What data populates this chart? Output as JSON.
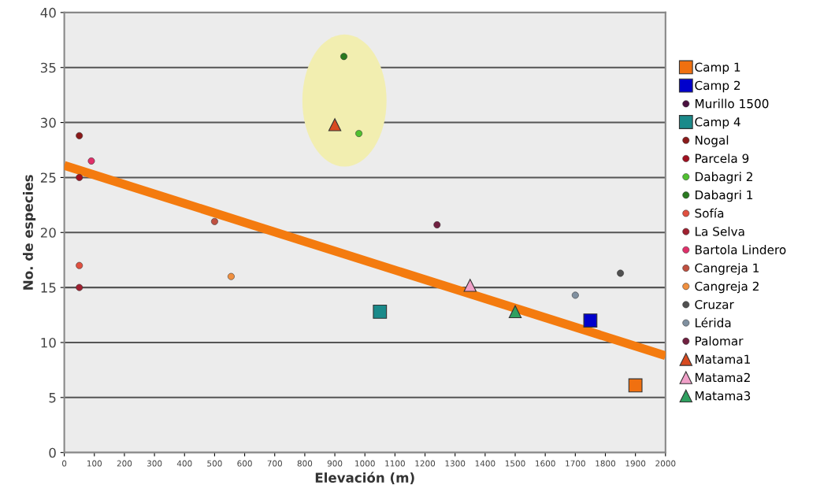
{
  "chart_data": {
    "type": "scatter",
    "xlabel": "Elevación (m)",
    "ylabel": "No. de especies",
    "xlim": [
      0,
      2000
    ],
    "xticks": [
      0,
      100,
      200,
      300,
      400,
      500,
      600,
      700,
      800,
      900,
      1000,
      1100,
      1200,
      1300,
      1400,
      1500,
      1600,
      1700,
      1800,
      1900,
      2000
    ],
    "ylim": [
      0,
      40
    ],
    "yticks": [
      0,
      5,
      10,
      15,
      20,
      25,
      30,
      35,
      40
    ],
    "grid": "y",
    "legend": "right",
    "series": [
      {
        "name": "Camp 1",
        "color": "#f07010",
        "marker": "square",
        "x": [
          1900
        ],
        "values": [
          6.1
        ]
      },
      {
        "name": "Camp 2",
        "color": "#0000cc",
        "marker": "square",
        "x": [
          1750
        ],
        "values": [
          12
        ]
      },
      {
        "name": "Murillo 1500",
        "color": "#4a1040",
        "marker": "circle"
      },
      {
        "name": "Camp 4",
        "color": "#1a8a8a",
        "marker": "square",
        "x": [
          1050
        ],
        "values": [
          12.8
        ]
      },
      {
        "name": "Nogal",
        "color": "#8b1a1a",
        "marker": "circle",
        "x": [
          50
        ],
        "values": [
          28.8
        ]
      },
      {
        "name": "Parcela 9",
        "color": "#a01020",
        "marker": "circle",
        "x": [
          50
        ],
        "values": [
          25
        ]
      },
      {
        "name": "Dabagri 2",
        "color": "#50c030",
        "marker": "circle",
        "x": [
          980
        ],
        "values": [
          29
        ]
      },
      {
        "name": "Dabagri 1",
        "color": "#2a7a20",
        "marker": "circle",
        "x": [
          930
        ],
        "values": [
          36
        ]
      },
      {
        "name": "Sofía",
        "color": "#e05040",
        "marker": "circle",
        "x": [
          50
        ],
        "values": [
          17
        ]
      },
      {
        "name": "La Selva",
        "color": "#a02030",
        "marker": "circle",
        "x": [
          50
        ],
        "values": [
          15
        ]
      },
      {
        "name": "Bartola Lindero",
        "color": "#e0306a",
        "marker": "circle",
        "x": [
          90
        ],
        "values": [
          26.5
        ]
      },
      {
        "name": "Cangreja 1",
        "color": "#c05040",
        "marker": "circle",
        "x": [
          500
        ],
        "values": [
          21
        ]
      },
      {
        "name": "Cangreja 2",
        "color": "#f09040",
        "marker": "circle",
        "x": [
          555
        ],
        "values": [
          16
        ]
      },
      {
        "name": "Cruzar",
        "color": "#505050",
        "marker": "circle",
        "x": [
          1850
        ],
        "values": [
          16.3
        ]
      },
      {
        "name": "Lérida",
        "color": "#8090a0",
        "marker": "circle",
        "x": [
          1700
        ],
        "values": [
          14.3
        ]
      },
      {
        "name": "Palomar",
        "color": "#702040",
        "marker": "circle",
        "x": [
          1240
        ],
        "values": [
          20.7
        ]
      },
      {
        "name": "Matama1",
        "color": "#d84a20",
        "marker": "triangle",
        "x": [
          900
        ],
        "values": [
          29.8
        ]
      },
      {
        "name": "Matama2",
        "color": "#f0a0c8",
        "marker": "triangle",
        "x": [
          1350
        ],
        "values": [
          15.2
        ]
      },
      {
        "name": "Matama3",
        "color": "#30a060",
        "marker": "triangle",
        "x": [
          1500
        ],
        "values": [
          12.8
        ]
      },
      {
        "type": "line",
        "color": "#f47b0f",
        "marker": "none",
        "x": [
          0,
          2000
        ],
        "values": [
          26.1,
          8.8
        ]
      }
    ]
  }
}
